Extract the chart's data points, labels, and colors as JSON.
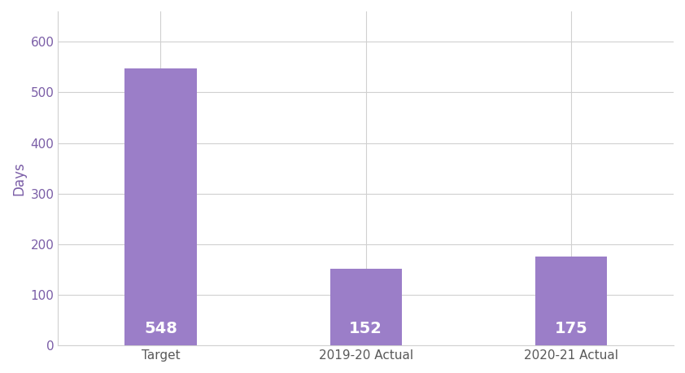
{
  "categories": [
    "Target",
    "2019-20 Actual",
    "2020-21 Actual"
  ],
  "values": [
    548,
    152,
    175
  ],
  "bar_color": "#9B7EC8",
  "label_color": "#ffffff",
  "label_fontsize": 14,
  "label_fontweight": "bold",
  "ylabel": "Days",
  "ylabel_color": "#7B5EA7",
  "ylabel_fontsize": 12,
  "tick_color": "#7B5EA7",
  "xtick_color": "#595959",
  "tick_fontsize": 11,
  "xtick_fontsize": 11,
  "ylim": [
    0,
    660
  ],
  "yticks": [
    0,
    100,
    200,
    300,
    400,
    500,
    600
  ],
  "grid_color": "#d0d0d0",
  "background_color": "#ffffff",
  "bar_width": 0.35
}
